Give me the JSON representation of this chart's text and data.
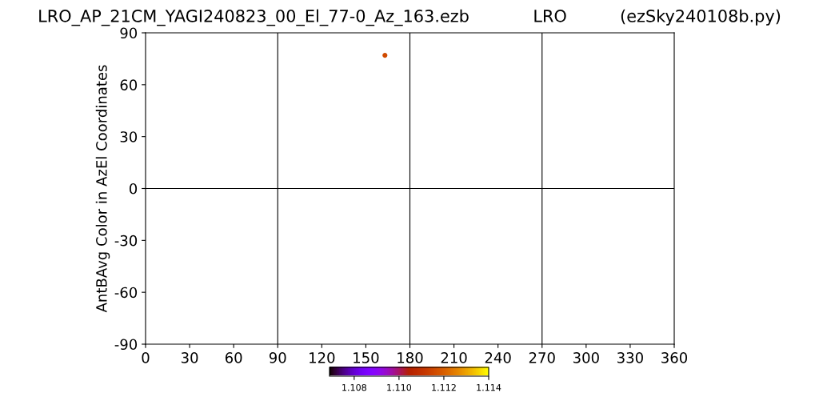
{
  "chart_data": {
    "type": "scatter",
    "title": "LRO_AP_21CM_YAGI240823_00_El_77-0_Az_163.ezb            LRO          (ezSky240108b.py)",
    "ylabel": "AntBAvg Color in AzEl Coordinates",
    "x": [
      163
    ],
    "values": [
      77
    ],
    "cvalues": [
      1.1116
    ],
    "marker": "circle",
    "xlim": [
      0,
      360
    ],
    "xticks": [
      0,
      30,
      60,
      90,
      120,
      150,
      180,
      210,
      240,
      270,
      300,
      330,
      360
    ],
    "ylim": [
      -90,
      90
    ],
    "yticks": [
      -90,
      -60,
      -30,
      0,
      30,
      60,
      90
    ],
    "clim": [
      1.1069,
      1.114
    ],
    "cticks": [
      1.108,
      {
        "value": 1.11,
        "label": "1.110"
      },
      1.112,
      1.114
    ],
    "ref_lines": [
      {
        "axis": "x",
        "value": 90,
        "color": "#000000"
      },
      {
        "axis": "x",
        "value": 180,
        "color": "#000000"
      },
      {
        "axis": "x",
        "value": 270,
        "color": "#000000"
      },
      {
        "axis": "y",
        "value": 0,
        "color": "#000000"
      }
    ],
    "grid": false,
    "legend": false
  }
}
